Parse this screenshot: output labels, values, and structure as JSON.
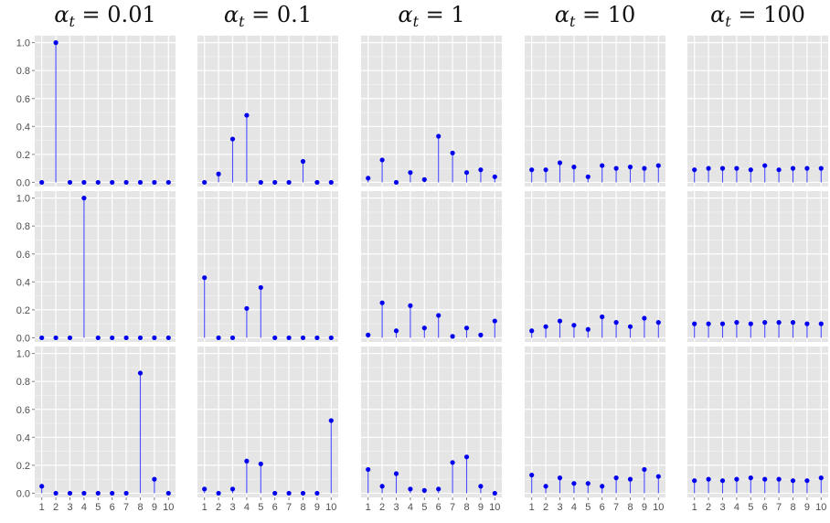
{
  "chart_data": {
    "type": "stem",
    "layout": "3 rows x 5 columns facet grid",
    "column_titles": [
      {
        "symbol": "α",
        "subscript": "t",
        "rest": " = 0.01"
      },
      {
        "symbol": "α",
        "subscript": "t",
        "rest": " = 0.1"
      },
      {
        "symbol": "α",
        "subscript": "t",
        "rest": " = 1"
      },
      {
        "symbol": "α",
        "subscript": "t",
        "rest": " = 10"
      },
      {
        "symbol": "α",
        "subscript": "t",
        "rest": " = 100"
      }
    ],
    "x": [
      1,
      2,
      3,
      4,
      5,
      6,
      7,
      8,
      9,
      10
    ],
    "x_tick_labels": [
      "1",
      "2",
      "3",
      "4",
      "5",
      "6",
      "7",
      "8",
      "9",
      "10"
    ],
    "y_ticks": [
      0.0,
      0.2,
      0.4,
      0.6,
      0.8,
      1.0
    ],
    "y_tick_labels": [
      "0.0",
      "0.2",
      "0.4",
      "0.6",
      "0.8",
      "1.0"
    ],
    "ylim": [
      -0.03,
      1.05
    ],
    "xlim": [
      0.5,
      10.5
    ],
    "grid": true,
    "panel_background": "#e5e5e5",
    "grid_color": "#ffffff",
    "stem_color": "#4a4aff",
    "point_color": "#0000ee",
    "panels": [
      [
        [
          0.0,
          1.0,
          0.0,
          0.0,
          0.0,
          0.0,
          0.0,
          0.0,
          0.0,
          0.0
        ],
        [
          0.0,
          0.06,
          0.31,
          0.48,
          0.0,
          0.0,
          0.0,
          0.15,
          0.0,
          0.0
        ],
        [
          0.03,
          0.16,
          0.0,
          0.07,
          0.02,
          0.33,
          0.21,
          0.07,
          0.09,
          0.04
        ],
        [
          0.09,
          0.09,
          0.14,
          0.11,
          0.04,
          0.12,
          0.1,
          0.11,
          0.1,
          0.12
        ],
        [
          0.09,
          0.1,
          0.1,
          0.1,
          0.09,
          0.12,
          0.09,
          0.1,
          0.1,
          0.1
        ]
      ],
      [
        [
          0.0,
          0.0,
          0.0,
          1.0,
          0.0,
          0.0,
          0.0,
          0.0,
          0.0,
          0.0
        ],
        [
          0.43,
          0.0,
          0.0,
          0.21,
          0.36,
          0.0,
          0.0,
          0.0,
          0.0,
          0.0
        ],
        [
          0.02,
          0.25,
          0.05,
          0.23,
          0.07,
          0.16,
          0.01,
          0.07,
          0.02,
          0.12
        ],
        [
          0.05,
          0.08,
          0.12,
          0.09,
          0.06,
          0.15,
          0.11,
          0.08,
          0.14,
          0.11
        ],
        [
          0.1,
          0.1,
          0.1,
          0.11,
          0.1,
          0.11,
          0.11,
          0.11,
          0.1,
          0.1
        ]
      ],
      [
        [
          0.05,
          0.0,
          0.0,
          0.0,
          0.0,
          0.0,
          0.0,
          0.86,
          0.1,
          0.0
        ],
        [
          0.03,
          0.0,
          0.03,
          0.23,
          0.21,
          0.0,
          0.0,
          0.0,
          0.0,
          0.52
        ],
        [
          0.17,
          0.05,
          0.14,
          0.03,
          0.02,
          0.03,
          0.22,
          0.26,
          0.05,
          0.0
        ],
        [
          0.13,
          0.05,
          0.11,
          0.07,
          0.07,
          0.05,
          0.11,
          0.1,
          0.17,
          0.12
        ],
        [
          0.09,
          0.1,
          0.09,
          0.1,
          0.11,
          0.1,
          0.1,
          0.09,
          0.09,
          0.11
        ]
      ]
    ]
  }
}
